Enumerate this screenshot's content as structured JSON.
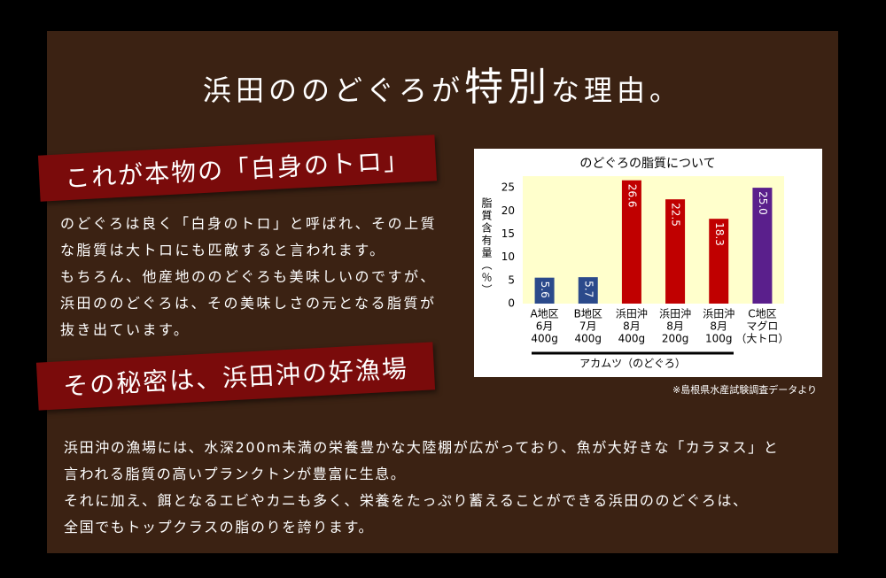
{
  "header": {
    "title_before": "浜田ののどぐろが",
    "title_emphasis": "特別",
    "title_after": "な理由。"
  },
  "sections": [
    {
      "heading": "これが本物の「白身のトロ」",
      "paragraph": [
        "のどぐろは良く「白身のトロ」と呼ばれ、その上質",
        "な脂質は大トロにも匹敵すると言われます。",
        "もちろん、他産地ののどぐろも美味しいのですが、",
        "浜田ののどぐろは、その美味しさの元となる脂質が",
        "抜き出ています。"
      ]
    },
    {
      "heading": "その秘密は、浜田沖の好漁場",
      "paragraph": [
        "浜田沖の漁場には、水深200m未満の栄養豊かな大陸棚が広がっており、魚が大好きな「カラヌス」と",
        "言われる脂質の高いプランクトンが豊富に生息。",
        "それに加え、餌となるエビやカニも多く、栄養をたっぷり蓄えることができる浜田ののどぐろは、",
        "全国でもトップクラスの脂のりを誇ります。"
      ]
    }
  ],
  "chart_data": {
    "type": "bar",
    "title": "のどぐろの脂質について",
    "y_label": "脂質含有量（％）",
    "categories": [
      [
        "A地区",
        "6月",
        "400g"
      ],
      [
        "B地区",
        "7月",
        "400g"
      ],
      [
        "浜田沖",
        "8月",
        "400g"
      ],
      [
        "浜田沖",
        "8月",
        "200g"
      ],
      [
        "浜田沖",
        "8月",
        "100g"
      ],
      [
        "C地区",
        "マグロ",
        "（大トロ）"
      ]
    ],
    "values": [
      5.6,
      5.7,
      26.6,
      22.5,
      18.3,
      25.0
    ],
    "value_labels": [
      "5.6",
      "5.7",
      "26.6",
      "22.5",
      "18.3",
      "25.0"
    ],
    "colors": [
      "#2b4a8b",
      "#2b4a8b",
      "#c00000",
      "#c00000",
      "#c00000",
      "#5a1f8c"
    ],
    "group_label": "アカムツ（のどぐろ）",
    "ylim": [
      0,
      27.5
    ],
    "yticks": [
      0,
      5,
      10,
      15,
      20,
      25
    ],
    "source": "※島根県水産試験調査データより"
  }
}
